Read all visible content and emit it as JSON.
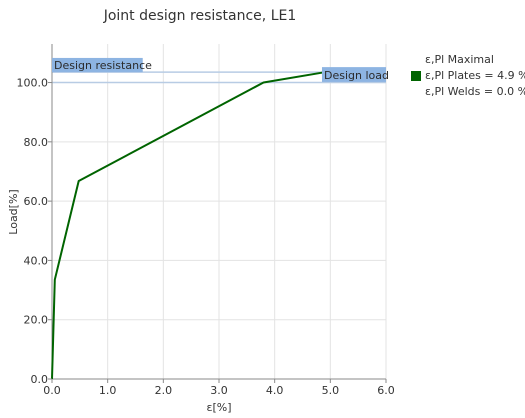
{
  "chart_data": {
    "type": "line",
    "title": "Joint design resistance, LE1",
    "xlabel": "ε[%]",
    "ylabel": "Load[%]",
    "xlim": [
      0,
      6
    ],
    "ylim": [
      0,
      113
    ],
    "xticks": [
      0,
      1,
      2,
      3,
      4,
      5,
      6
    ],
    "xtick_labels": [
      "0.0",
      "1.0",
      "2.0",
      "3.0",
      "4.0",
      "5.0",
      "6.0"
    ],
    "yticks": [
      0,
      20,
      40,
      60,
      80,
      100
    ],
    "ytick_labels": [
      "0.0",
      "20.0",
      "40.0",
      "60.0",
      "80.0",
      "100.0"
    ],
    "grid": true,
    "legend_position": "top-right outside",
    "series": [
      {
        "name": "ε,Pl Plates = 4.9 %",
        "color": "#006400",
        "x": [
          0,
          0.05,
          0.48,
          3.8,
          4.9
        ],
        "y": [
          0,
          33.5,
          66.8,
          100,
          103.5
        ]
      }
    ],
    "reference_lines": [
      {
        "label": "Design resistance",
        "y": 100,
        "color": "#b8cce4"
      },
      {
        "label": "Design load",
        "y": 103.5,
        "color": "#b8cce4"
      }
    ],
    "annotations": [
      {
        "text": "Design resistance",
        "x_start": 0,
        "x_end": 1.63,
        "y_top": 108.3,
        "y_bottom": 103.5,
        "color": "#8db4e2"
      },
      {
        "text": "Design load",
        "x_start": 4.85,
        "x_end": 6.0,
        "y_top": 105.2,
        "y_bottom": 100.2,
        "color": "#8db4e2"
      }
    ]
  },
  "legend": {
    "header": "ε,Pl Maximal",
    "items": [
      {
        "label": "ε,Pl Plates = 4.9 %",
        "color": "#006400",
        "swatch": true
      },
      {
        "label": "ε,Pl Welds = 0.0 %",
        "swatch": false
      }
    ]
  },
  "style": {
    "grid_color": "#e3e3e3",
    "axis_color": "#8a8a8a"
  }
}
